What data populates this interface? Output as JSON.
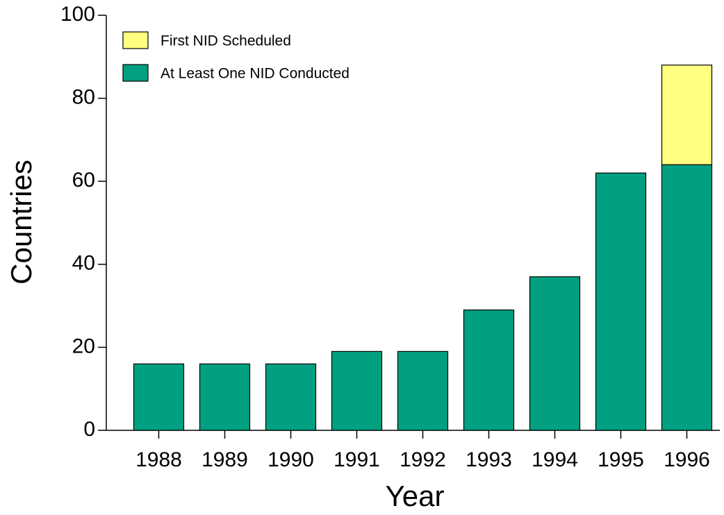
{
  "chart_data": {
    "type": "stacked-bar",
    "xlabel": "Year",
    "ylabel": "Countries",
    "categories": [
      "1988",
      "1989",
      "1990",
      "1991",
      "1992",
      "1993",
      "1994",
      "1995",
      "1996"
    ],
    "series": [
      {
        "name": "At Least One NID Conducted",
        "color": "#00a080",
        "values": [
          16,
          16,
          16,
          19,
          19,
          29,
          37,
          62,
          64
        ]
      },
      {
        "name": "First NID Scheduled",
        "color": "#ffff80",
        "values": [
          0,
          0,
          0,
          0,
          0,
          0,
          0,
          0,
          24
        ]
      }
    ],
    "ylim": [
      0,
      100
    ],
    "yticks": [
      0,
      20,
      40,
      60,
      80,
      100
    ],
    "grid": false,
    "legend": "top-left"
  }
}
